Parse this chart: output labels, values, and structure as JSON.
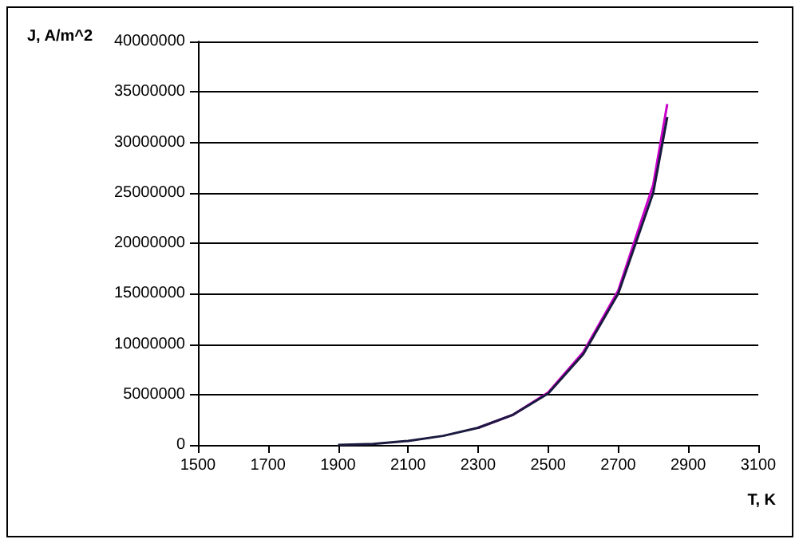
{
  "chart_data": {
    "type": "line",
    "xlabel": "T, K",
    "ylabel": "J, A/m^2",
    "x": [
      1900,
      2000,
      2100,
      2200,
      2300,
      2400,
      2500,
      2600,
      2700,
      2800,
      2840
    ],
    "series": [
      {
        "color": "#cc00cc",
        "values": [
          null,
          null,
          null,
          null,
          1700000,
          3000000,
          5200000,
          9200000,
          15300000,
          25800000,
          33800000
        ]
      },
      {
        "color": "#1a1a40",
        "values": [
          0,
          100000,
          400000,
          900000,
          1700000,
          3000000,
          5100000,
          9000000,
          15000000,
          25000000,
          32500000
        ]
      }
    ],
    "xlim": [
      1500,
      3100
    ],
    "xticks": [
      1500,
      1700,
      1900,
      2100,
      2300,
      2500,
      2700,
      2900,
      3100
    ],
    "ylim": [
      0,
      40000000
    ],
    "yticks": [
      0,
      5000000,
      10000000,
      15000000,
      20000000,
      25000000,
      30000000,
      35000000,
      40000000
    ],
    "grid": "y",
    "marker": "none",
    "line_style": "solid"
  }
}
